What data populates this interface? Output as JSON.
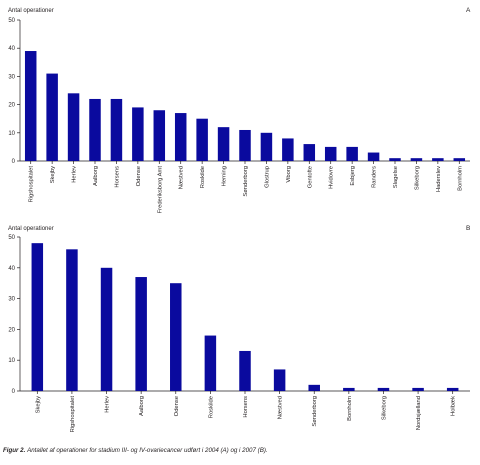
{
  "chart_data": [
    {
      "type": "bar",
      "panel_letter": "A",
      "ylabel": "Antal operationer",
      "ylim": [
        0,
        50
      ],
      "yticks": [
        "0",
        "10",
        "20",
        "30",
        "40",
        "50"
      ],
      "color": "#0a0a9e",
      "categories": [
        "Rigshospitalet",
        "Skejby",
        "Herlev",
        "Aalborg",
        "Horsens",
        "Odense",
        "Frederiksborg Amt",
        "Næstved",
        "Roskilde",
        "Herning",
        "Sønderborg",
        "Glostrup",
        "Viborg",
        "Gentofte",
        "Hvidovre",
        "Esbjerg",
        "Randers",
        "Slagelse",
        "Silkeborg",
        "Haderslev",
        "Bornholm"
      ],
      "values": [
        39,
        31,
        24,
        22,
        22,
        19,
        18,
        17,
        15,
        12,
        11,
        10,
        8,
        6,
        5,
        5,
        3,
        1,
        1,
        1,
        1
      ]
    },
    {
      "type": "bar",
      "panel_letter": "B",
      "ylabel": "Antal operationer",
      "ylim": [
        0,
        50
      ],
      "yticks": [
        "0",
        "10",
        "20",
        "30",
        "40",
        "50"
      ],
      "color": "#0a0a9e",
      "categories": [
        "Skejby",
        "Rigshospitalet",
        "Herlev",
        "Aalborg",
        "Odense",
        "Roskilde",
        "Horsens",
        "Næstved",
        "Sønderborg",
        "Bornholm",
        "Silkeborg",
        "Nordsjælland",
        "Holbæk"
      ],
      "values": [
        48,
        46,
        40,
        37,
        35,
        18,
        13,
        7,
        2,
        1,
        1,
        1,
        1
      ]
    }
  ],
  "caption": {
    "figure_label": "Figur 2.",
    "text": "Antallet af operationer for stadium III- og IV-ovariecancer udført i 2004 (A) og i 2007 (B)."
  }
}
